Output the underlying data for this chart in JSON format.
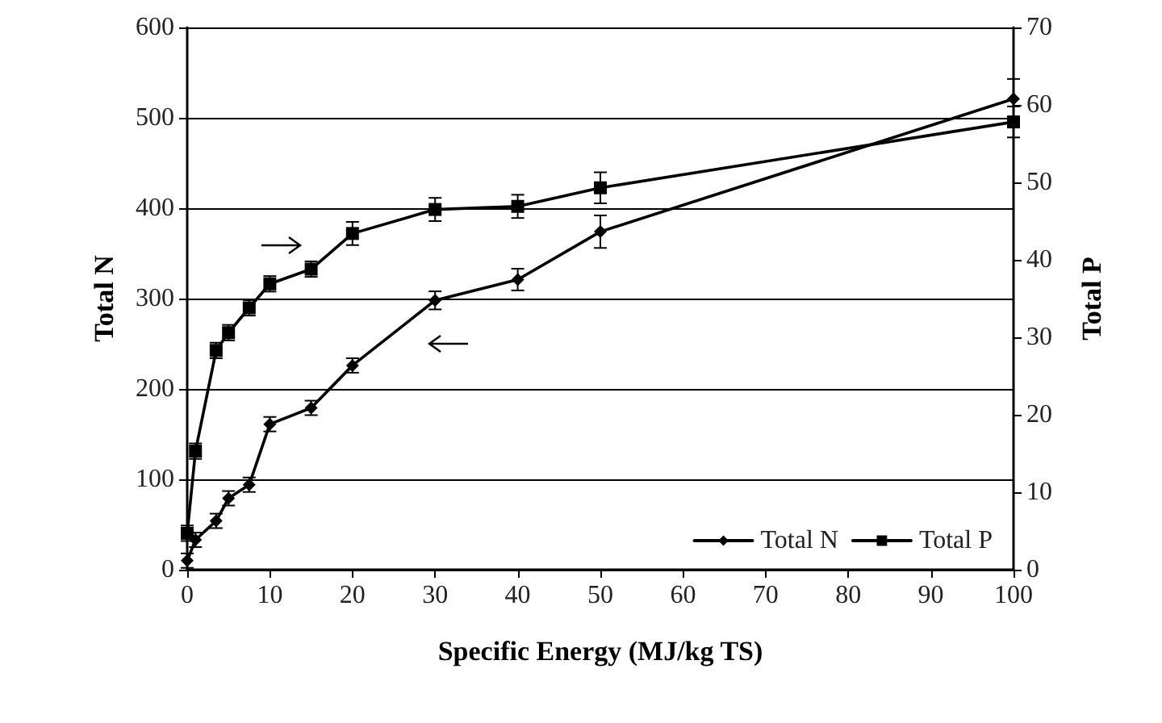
{
  "chart_data": {
    "type": "line",
    "xlabel": "Specific Energy (MJ/kg TS)",
    "ylabel": "Total N",
    "y2label": "Total P",
    "x": [
      0,
      1,
      3.5,
      5,
      7.5,
      10,
      15,
      20,
      30,
      40,
      50,
      100
    ],
    "series": [
      {
        "name": "Total N",
        "color": "#000000",
        "marker": "diamond",
        "values": [
          10,
          33,
          54,
          79,
          94,
          161,
          179,
          226,
          298,
          321,
          374,
          521
        ],
        "errors": [
          8,
          8,
          8,
          8,
          8,
          8,
          8,
          8,
          10,
          12,
          18,
          22
        ]
      },
      {
        "name": "Total P",
        "color": "#000000",
        "marker": "square",
        "axis": "y2",
        "values": [
          4.7,
          15.3,
          28.3,
          30.6,
          33.8,
          36.9,
          38.8,
          43.4,
          46.5,
          46.9,
          49.3,
          57.8
        ],
        "errors": [
          1,
          1,
          1,
          1,
          1,
          1,
          1,
          1.5,
          1.5,
          1.5,
          2,
          2
        ]
      }
    ],
    "xlim": [
      0,
      100
    ],
    "xticks": [
      0,
      10,
      20,
      30,
      40,
      50,
      60,
      70,
      80,
      90,
      100
    ],
    "ylim": [
      0,
      600
    ],
    "yticks": [
      0,
      100,
      200,
      300,
      400,
      500,
      600
    ],
    "y2lim": [
      0,
      70
    ],
    "y2ticks": [
      0,
      10,
      20,
      30,
      40,
      50,
      60,
      70
    ],
    "grid": "y",
    "legend": "bottom right",
    "line_style": "solid"
  }
}
